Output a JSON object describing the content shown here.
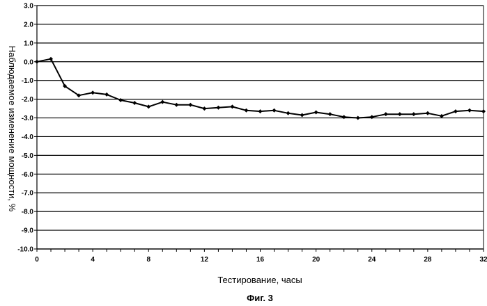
{
  "chart_data": {
    "type": "line",
    "title": "",
    "xlabel": "Тестирование, часы",
    "ylabel": "Наблюдаемое изменение мощности, %",
    "xlim": [
      0,
      32
    ],
    "ylim": [
      -10,
      3
    ],
    "x_ticks": [
      "0",
      "4",
      "8",
      "12",
      "16",
      "20",
      "24",
      "28",
      "32"
    ],
    "y_ticks": [
      "3.0",
      "2.0",
      "1.0",
      "0.0",
      "-1.0",
      "-2.0",
      "-3.0",
      "-4.0",
      "-5.0",
      "-6.0",
      "-7.0",
      "-8.0",
      "-9.0",
      "-10.0"
    ],
    "grid": true,
    "legend": false,
    "series": [
      {
        "x": [
          0,
          1,
          2,
          3,
          4,
          5,
          6,
          7,
          8,
          9,
          10,
          11,
          12,
          13,
          14,
          15,
          16,
          17,
          18,
          19,
          20,
          21,
          22,
          23,
          24,
          25,
          26,
          27,
          28,
          29,
          30,
          31,
          32
        ],
        "values": [
          0.0,
          0.15,
          -1.3,
          -1.8,
          -1.65,
          -1.75,
          -2.05,
          -2.2,
          -2.4,
          -2.15,
          -2.3,
          -2.3,
          -2.5,
          -2.45,
          -2.4,
          -2.6,
          -2.65,
          -2.6,
          -2.75,
          -2.85,
          -2.7,
          -2.8,
          -2.95,
          -3.0,
          -2.95,
          -2.8,
          -2.8,
          -2.8,
          -2.75,
          -2.9,
          -2.65,
          -2.6,
          -2.65
        ]
      }
    ]
  },
  "caption": "Фиг. 3",
  "colors": {
    "line": "#000000",
    "grid": "#000000"
  }
}
